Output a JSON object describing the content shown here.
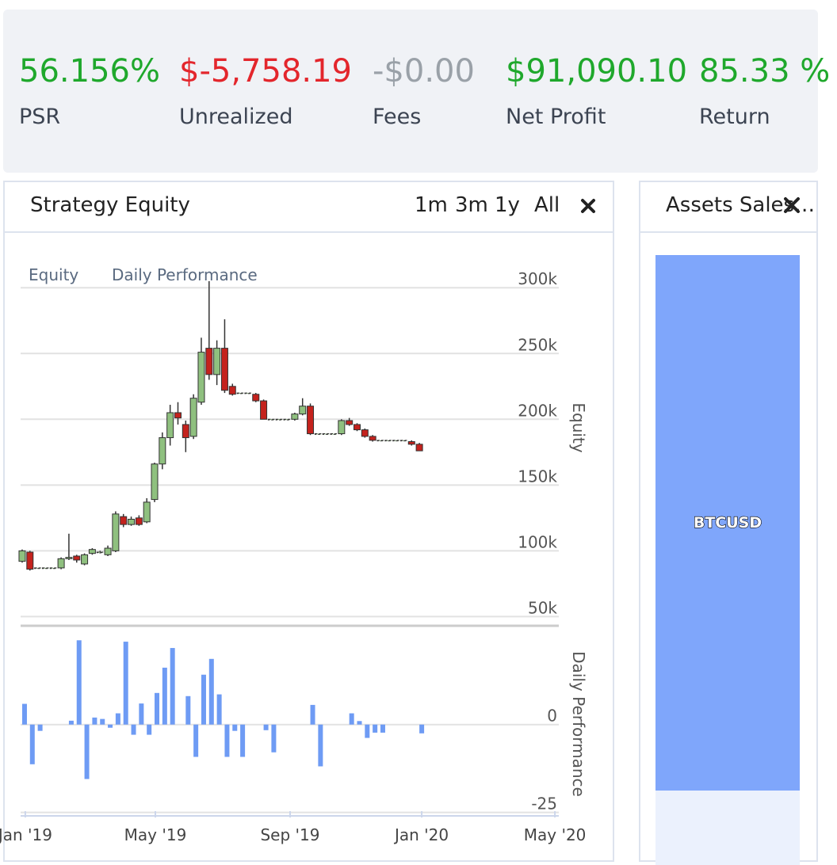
{
  "stats": [
    {
      "value": "56.156%",
      "label": "PSR",
      "color": "#1fa82c"
    },
    {
      "value": "$-5,758.19",
      "label": "Unrealized",
      "color": "#e3262c"
    },
    {
      "value": "-$0.00",
      "label": "Fees",
      "color": "#9aa1a8"
    },
    {
      "value": "$91,090.10",
      "label": "Net Profit",
      "color": "#1fa82c"
    },
    {
      "value": "85.33 %",
      "label": "Return",
      "color": "#1fa82c"
    }
  ],
  "equity_panel": {
    "title": "Strategy Equity",
    "ranges": [
      "1m",
      "3m",
      "1y",
      "All"
    ]
  },
  "assets_panel": {
    "title": "Assets Sales…",
    "bar_label": "BTCUSD",
    "color": "#7fa6fb"
  },
  "chart_data": [
    {
      "type": "candlestick",
      "name": "Equity",
      "ylabel": "Equity",
      "up_color": "#8fc07f",
      "down_color": "#c4221d",
      "grid": true,
      "x": [
        0,
        1,
        2,
        3,
        4,
        5,
        6,
        7,
        8,
        9,
        10,
        11,
        12,
        13,
        14,
        15,
        16,
        17,
        18,
        19,
        20,
        21,
        22,
        23,
        24,
        25,
        26,
        27,
        28,
        29,
        30,
        31,
        32,
        33,
        34,
        35,
        36,
        37,
        38,
        39,
        40,
        41,
        42,
        43,
        44,
        45,
        46,
        47,
        48,
        49,
        50,
        51
      ],
      "open": [
        92000,
        99000,
        87000,
        87000,
        87000,
        87000,
        94000,
        96000,
        90000,
        98000,
        99000,
        97000,
        100000,
        126000,
        120000,
        125000,
        122000,
        139000,
        166000,
        186000,
        205000,
        196000,
        187000,
        213000,
        254000,
        234000,
        254000,
        225000,
        220000,
        220000,
        219000,
        214000,
        200000,
        200000,
        200000,
        200000,
        204000,
        210000,
        189000,
        189000,
        189000,
        189000,
        199000,
        196000,
        192000,
        187000,
        184000,
        184000,
        184000,
        184000,
        183000,
        181000
      ],
      "high": [
        101000,
        100000,
        87000,
        87000,
        87000,
        95000,
        113000,
        97000,
        98000,
        102000,
        100000,
        104000,
        130000,
        128000,
        126000,
        127000,
        140000,
        167000,
        190000,
        211000,
        213000,
        199000,
        219000,
        262000,
        305000,
        260000,
        276000,
        227000,
        220000,
        220000,
        220000,
        215000,
        200000,
        200000,
        200000,
        205000,
        216000,
        212000,
        189000,
        189000,
        189000,
        200000,
        201000,
        197000,
        193000,
        188000,
        184000,
        184000,
        184000,
        184000,
        184000,
        182000
      ],
      "low": [
        91000,
        85000,
        87000,
        87000,
        87000,
        86000,
        93000,
        91000,
        89000,
        97000,
        98000,
        96000,
        99000,
        118000,
        119000,
        119000,
        121000,
        137000,
        162000,
        180000,
        196000,
        175000,
        185000,
        211000,
        230000,
        226000,
        220000,
        218000,
        220000,
        220000,
        213000,
        200000,
        200000,
        200000,
        200000,
        199000,
        203000,
        188000,
        189000,
        189000,
        189000,
        188000,
        195000,
        191000,
        186000,
        183000,
        184000,
        184000,
        184000,
        184000,
        180000,
        176000
      ],
      "close": [
        100000,
        86000,
        87000,
        87000,
        87000,
        94000,
        95000,
        93000,
        97000,
        101000,
        99000,
        102000,
        128000,
        120000,
        124000,
        120000,
        137000,
        166000,
        186000,
        205000,
        201000,
        186000,
        216000,
        251000,
        234000,
        254000,
        222000,
        219000,
        220000,
        220000,
        214000,
        200000,
        200000,
        200000,
        200000,
        204000,
        210000,
        189000,
        189000,
        189000,
        189000,
        199000,
        196000,
        192000,
        187000,
        184000,
        184000,
        184000,
        184000,
        184000,
        181000,
        176000
      ],
      "xlim": [
        -0.2,
        68.9
      ],
      "ylim": [
        43000,
        317000
      ],
      "yticks": [
        {
          "value": 50000,
          "label": "50k"
        },
        {
          "value": 100000,
          "label": "100k"
        },
        {
          "value": 150000,
          "label": "150k"
        },
        {
          "value": 200000,
          "label": "200k"
        },
        {
          "value": 250000,
          "label": "250k"
        },
        {
          "value": 300000,
          "label": "300k"
        }
      ]
    },
    {
      "type": "bar",
      "name": "Daily Performance",
      "ylabel": "Daily Performance",
      "color": "#6e9bf4",
      "grid": true,
      "x": [
        0,
        1,
        2,
        3,
        4,
        5,
        6,
        7,
        8,
        9,
        10,
        11,
        12,
        13,
        14,
        15,
        16,
        17,
        18,
        19,
        20,
        21,
        22,
        23,
        24,
        25,
        26,
        27,
        28,
        29,
        30,
        31,
        32,
        33,
        34,
        35,
        36,
        37,
        38,
        39,
        40,
        41,
        42,
        43,
        44,
        45,
        46,
        47,
        48,
        49,
        50,
        51
      ],
      "values": [
        5.9,
        -11.3,
        -1.8,
        0,
        0,
        0,
        1.1,
        24,
        -15.5,
        2,
        1.6,
        -0.9,
        3.2,
        23.6,
        -2.9,
        6,
        -2.9,
        9,
        16.2,
        21.8,
        0,
        8.1,
        -9.2,
        14.2,
        18.7,
        8.6,
        -9.2,
        -1.8,
        -9.2,
        0,
        0,
        -1.6,
        -7.9,
        0,
        0,
        0,
        0,
        5.6,
        -11.9,
        0,
        0,
        0,
        3.2,
        1,
        -3.8,
        -2.3,
        -2.3,
        0,
        0,
        0,
        0,
        -2.5
      ],
      "xlim": [
        -0.2,
        68.9
      ],
      "ylim": [
        -26,
        27
      ],
      "yticks": [
        -25,
        0
      ],
      "xticks": [
        {
          "value": 0.4,
          "label": "Jan '19"
        },
        {
          "value": 17.1,
          "label": "May '19"
        },
        {
          "value": 34.4,
          "label": "Sep '19"
        },
        {
          "value": 51.3,
          "label": "Jan '20"
        },
        {
          "value": 68.4,
          "label": "May '20"
        }
      ]
    }
  ]
}
